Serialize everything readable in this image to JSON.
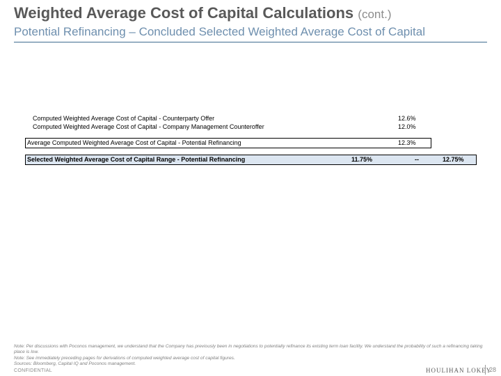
{
  "header": {
    "title": "Weighted Average Cost of Capital Calculations",
    "title_suffix": "(cont.)",
    "subtitle": "Potential Refinancing – Concluded Selected Weighted Average Cost of Capital"
  },
  "table": {
    "rows": [
      {
        "label": "Computed Weighted Average Cost of Capital - Counterparty Offer",
        "value": "12.6%"
      },
      {
        "label": "Computed Weighted Average Cost of Capital - Company Management Counteroffer",
        "value": "12.0%"
      }
    ],
    "average": {
      "label": "Average Computed Weighted Average Cost of Capital - Potential Refinancing",
      "value": "12.3%"
    },
    "selected": {
      "label": "Selected Weighted Average Cost of Capital Range - Potential Refinancing",
      "low": "11.75%",
      "separator": "--",
      "high": "12.75%"
    }
  },
  "footer": {
    "notes": [
      "Note: Per discussions with Poconos management, we understand that the Company has previously been in negotiations to potentially refinance its existing term loan facility. We understand the probability of such a refinancing taking place is low.",
      "Note: See immediately preceding pages for derivations of computed weighted average cost of capital figures.",
      "Sources: Bloomberg, Capital IQ and Poconos management."
    ],
    "confidential": "CONFIDENTIAL",
    "logo_text": "HOULIHAN LOKEY",
    "page_number": "28"
  }
}
